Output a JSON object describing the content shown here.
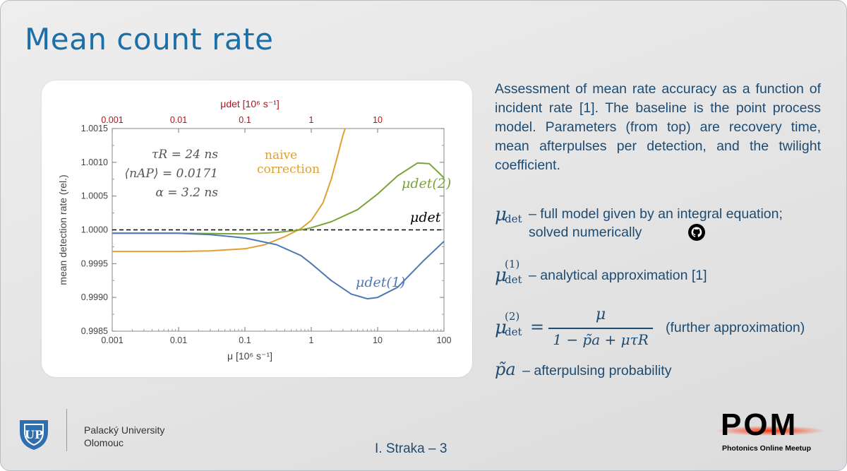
{
  "slide": {
    "title": "Mean count rate",
    "description": "Assessment of mean rate accuracy as a function of incident rate [1]. The baseline is the point process model. Parameters (from top) are recovery time, mean afterpulses per detection, and the twilight coefficient.",
    "items": [
      {
        "symbol": "μ",
        "sub": "det",
        "text": "– full model given by an integral equation; solved numerically"
      },
      {
        "symbol": "μ",
        "sup": "(1)",
        "sub": "det",
        "text": "– analytical approximation [1]"
      },
      {
        "symbol": "μ",
        "sup": "(2)",
        "sub": "det",
        "formula_num": "μ",
        "formula_den": "1 − p̃a + μτR",
        "text": "(further approximation)"
      },
      {
        "symbol": "p̃a",
        "text": "– afterpulsing probability"
      }
    ],
    "github_icon": "github-icon"
  },
  "footer": {
    "university_line1": "Palacký University",
    "university_line2": "Olomouc",
    "author": "I. Straka – 3",
    "pom_logo": "POM",
    "pom_subtitle": "Photonics Online Meetup"
  },
  "chart_data": {
    "type": "line",
    "xscale": "log",
    "xlim": [
      0.001,
      100
    ],
    "ylim": [
      0.9985,
      1.0015
    ],
    "xlabel": "μ [10⁶ s⁻¹]",
    "ylabel": "mean detection rate (rel.)",
    "top_axis_label": "μdet [10⁶ s⁻¹]",
    "x_ticks": [
      0.001,
      0.01,
      0.1,
      1,
      10,
      100
    ],
    "x_tick_labels": [
      "0.001",
      "0.01",
      "0.1",
      "1",
      "10",
      "100"
    ],
    "top_ticks": [
      0.001,
      0.01,
      0.1,
      1,
      10
    ],
    "top_tick_labels": [
      "0.001",
      "0.01",
      "0.1",
      "1",
      "10"
    ],
    "y_ticks": [
      0.9985,
      0.999,
      0.9995,
      1.0,
      1.0005,
      1.001,
      1.0015
    ],
    "y_tick_labels": [
      "0.9985",
      "0.9990",
      "0.9995",
      "1.0000",
      "1.0005",
      "1.0010",
      "1.0015"
    ],
    "params": [
      "τR = 24 ns",
      "⟨nAP⟩ = 0.0171",
      "α = 3.2 ns"
    ],
    "series": [
      {
        "name": "μdet",
        "color": "#000000",
        "style": "dashed",
        "x": [
          0.001,
          100
        ],
        "y": [
          1.0,
          1.0
        ]
      },
      {
        "name": "naive correction",
        "color": "#e0a030",
        "x": [
          0.001,
          0.01,
          0.03,
          0.1,
          0.2,
          0.4,
          0.7,
          1.0,
          1.5,
          2.0,
          2.5,
          3.0,
          3.5
        ],
        "y": [
          0.99968,
          0.99968,
          0.99969,
          0.99972,
          0.99978,
          0.9999,
          1.00002,
          1.00014,
          1.0004,
          1.00075,
          1.0011,
          1.0014,
          1.0016
        ]
      },
      {
        "name": "μdet(2)",
        "color": "#7ba33a",
        "x": [
          0.001,
          0.01,
          0.1,
          0.3,
          0.7,
          1.0,
          2,
          5,
          10,
          20,
          40,
          60,
          100
        ],
        "y": [
          0.99995,
          0.99995,
          0.99994,
          0.99996,
          1.0,
          1.00003,
          1.00012,
          1.0003,
          1.00053,
          1.0008,
          1.00099,
          1.00098,
          1.00077
        ]
      },
      {
        "name": "μdet(1)",
        "color": "#4d7ab3",
        "x": [
          0.001,
          0.01,
          0.03,
          0.1,
          0.3,
          0.7,
          1.0,
          2,
          4,
          7,
          10,
          20,
          50,
          100
        ],
        "y": [
          0.99995,
          0.99995,
          0.99993,
          0.99988,
          0.99978,
          0.99962,
          0.9995,
          0.99925,
          0.99905,
          0.99898,
          0.999,
          0.99915,
          0.99955,
          0.99983
        ]
      }
    ],
    "annotations": [
      "naive",
      "correction"
    ]
  }
}
